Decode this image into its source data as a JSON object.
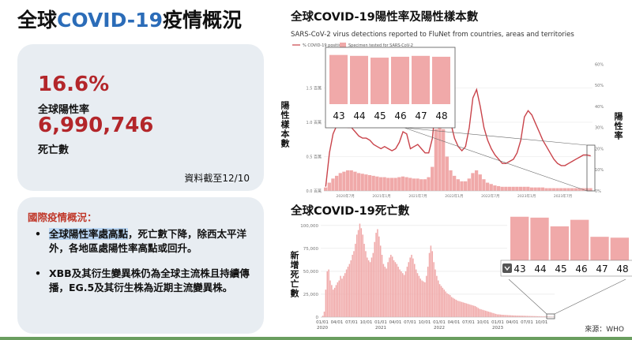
{
  "page": {
    "title_main": "全球",
    "title_highlight": "COVID-19",
    "title_rest": "疫情概況",
    "source": "來源：WHO"
  },
  "stats": {
    "positivity_value": "16.6%",
    "positivity_label": "全球陽性率",
    "deaths_value": "6,990,746",
    "deaths_label": "死亡數",
    "as_of": "資料截至12/10"
  },
  "notes": {
    "heading": "國際疫情概況：",
    "items": [
      {
        "highlight": "全球陽性率處高點",
        "text": "，死亡數下降，除西太平洋外，各地區處陽性率高點或回升。"
      },
      {
        "highlight": "",
        "text": "XBB及其衍生變異株仍為全球主流株且持續傳播，EG.5及其衍生株為近期主流變異株。"
      }
    ]
  },
  "colors": {
    "title_blue": "#2b6cb8",
    "stat_red": "#b3262a",
    "bar_pink": "#f0a9a9",
    "line_red": "#c9434a",
    "card_bg": "#e8edf2",
    "notes_red": "#c0392b",
    "footer_green": "#6a9e5f"
  },
  "chart_data": [
    {
      "type": "line",
      "title": "全球COVID-19陽性率及陽性樣本數",
      "subtitle": "SARS-CoV-2 virus detections reported to FluNet from countries, areas and territories",
      "legend": [
        "% COVID-19 positive",
        "Specimen tested for SARS-CoV-2"
      ],
      "legend_position": "top-left",
      "left_axis_label": "陽性樣本數",
      "right_axis_label": "陽性率",
      "left_ticks": [
        "0.0 百萬",
        "0.5 百萬",
        "1.0 百萬",
        "1.5 百萬"
      ],
      "right_ticks": [
        "0%",
        "10%",
        "20%",
        "30%",
        "40%",
        "50%",
        "60%"
      ],
      "ylim_left": [
        0,
        2.0
      ],
      "ylim_right": [
        0,
        65
      ],
      "x_ticks": [
        "2020年7月",
        "2021年1月",
        "2021年7月",
        "2022年1月",
        "2022年7月",
        "2023年1月",
        "2023年7月"
      ],
      "series": [
        {
          "name": "% COVID-19 positive",
          "axis": "right",
          "values": [
            2,
            18,
            27,
            31,
            35,
            33,
            30,
            30,
            28,
            26,
            25,
            25,
            24,
            22,
            21,
            20,
            21,
            20,
            19,
            20,
            23,
            28,
            27,
            20,
            21,
            22,
            20,
            18,
            18,
            25,
            44,
            55,
            56,
            44,
            32,
            25,
            21,
            19,
            21,
            30,
            44,
            48,
            40,
            30,
            24,
            20,
            17,
            15,
            13,
            13,
            14,
            15,
            18,
            24,
            35,
            38,
            36,
            32,
            28,
            24,
            21,
            18,
            15,
            13,
            12,
            12,
            13,
            14,
            15,
            16,
            17,
            17,
            16.6
          ]
        },
        {
          "name": "Specimen tested for SARS-CoV-2",
          "axis": "left",
          "values": [
            0.05,
            0.12,
            0.18,
            0.22,
            0.26,
            0.28,
            0.3,
            0.3,
            0.28,
            0.26,
            0.25,
            0.24,
            0.23,
            0.22,
            0.21,
            0.2,
            0.2,
            0.19,
            0.19,
            0.19,
            0.2,
            0.21,
            0.2,
            0.19,
            0.18,
            0.18,
            0.17,
            0.17,
            0.2,
            0.35,
            0.9,
            1.2,
            0.9,
            0.5,
            0.3,
            0.22,
            0.17,
            0.14,
            0.14,
            0.18,
            0.26,
            0.3,
            0.24,
            0.17,
            0.12,
            0.1,
            0.08,
            0.07,
            0.06,
            0.06,
            0.06,
            0.06,
            0.06,
            0.06,
            0.06,
            0.06,
            0.05,
            0.05,
            0.05,
            0.05,
            0.04,
            0.04,
            0.04,
            0.04,
            0.04,
            0.04,
            0.04,
            0.04,
            0.04,
            0.04,
            0.04,
            0.04,
            0.04
          ]
        }
      ],
      "inset": {
        "categories": [
          "43",
          "44",
          "45",
          "46",
          "47",
          "48"
        ],
        "values": [
          55,
          54,
          52,
          53,
          54,
          53
        ]
      }
    },
    {
      "type": "bar",
      "title": "全球COVID-19死亡數",
      "ylabel": "新增死亡數",
      "y_ticks": [
        "0",
        "25,000",
        "50,000",
        "75,000",
        "100,000"
      ],
      "ylim": [
        0,
        105000
      ],
      "x_ticks": [
        "01/01\n2020",
        "04/01",
        "07/01",
        "10/01",
        "01/01\n2021",
        "04/01",
        "07/01",
        "10/01",
        "01/01\n2022",
        "04/01",
        "07/01",
        "10/01",
        "01/01\n2023",
        "04/01",
        "07/01",
        "10/01"
      ],
      "values": [
        0,
        1500,
        6000,
        30000,
        50000,
        52000,
        40000,
        35000,
        30000,
        32000,
        35000,
        38000,
        40000,
        45000,
        42000,
        45000,
        48000,
        52000,
        55000,
        58000,
        62000,
        68000,
        72000,
        80000,
        90000,
        95000,
        102000,
        97000,
        90000,
        80000,
        72000,
        65000,
        62000,
        60000,
        65000,
        70000,
        82000,
        92000,
        96000,
        88000,
        78000,
        68000,
        58000,
        55000,
        53000,
        60000,
        65000,
        68000,
        66000,
        62000,
        60000,
        58000,
        55000,
        52000,
        50000,
        48000,
        46000,
        50000,
        55000,
        60000,
        65000,
        68000,
        64000,
        58000,
        52000,
        48000,
        45000,
        42000,
        40000,
        39000,
        38000,
        45000,
        55000,
        70000,
        78000,
        72000,
        60000,
        52000,
        45000,
        40000,
        36000,
        34000,
        32000,
        30000,
        28000,
        26000,
        25000,
        24000,
        22000,
        21000,
        20000,
        19000,
        18000,
        17500,
        17000,
        16500,
        16000,
        15500,
        15000,
        14500,
        14000,
        13500,
        13000,
        12500,
        12000,
        11000,
        10000,
        9000,
        8500,
        8000,
        7500,
        7000,
        6500,
        6000,
        5500,
        5000,
        4500,
        4000,
        3500,
        3000,
        3000,
        2800,
        2600,
        2500,
        2400,
        2300,
        2200,
        2100,
        2000,
        1900,
        1800,
        1800,
        1700,
        1700,
        1600,
        1600,
        1500,
        1500,
        1400,
        1400,
        1300,
        1300,
        1200,
        1200,
        1100,
        1100,
        1000,
        1000,
        900,
        900,
        800,
        800,
        700,
        700,
        600,
        600,
        500,
        500
      ],
      "inset": {
        "categories": [
          "43",
          "44",
          "45",
          "46",
          "47",
          "48"
        ],
        "values": [
          1000,
          980,
          780,
          930,
          540,
          520
        ]
      }
    }
  ]
}
